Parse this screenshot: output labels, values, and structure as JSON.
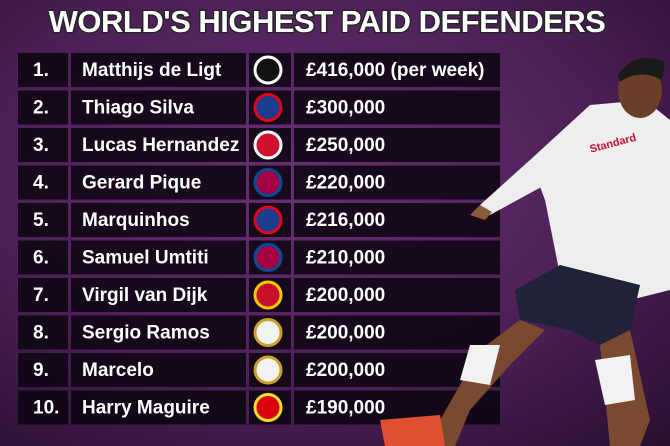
{
  "header": {
    "title": "WORLD'S HIGHEST PAID DEFENDERS"
  },
  "table": {
    "rows": [
      [
        "1.",
        "Matthijs de Ligt",
        "£416,000 (per week)"
      ],
      [
        "2.",
        "Thiago Silva",
        "£300,000"
      ],
      [
        "3.",
        "Lucas Hernandez",
        "£250,000"
      ],
      [
        "4.",
        "Gerard Pique",
        "£220,000"
      ],
      [
        "5.",
        "Marquinhos",
        "£216,000"
      ],
      [
        "6.",
        "Samuel Umtiti",
        "£210,000"
      ],
      [
        "7.",
        "Virgil van Dijk",
        "£200,000"
      ],
      [
        "8.",
        "Sergio Ramos",
        "£200,000"
      ],
      [
        "9.",
        "Marcelo",
        "£200,000"
      ],
      [
        "10.",
        "Harry Maguire",
        "£190,000"
      ]
    ]
  }
}
